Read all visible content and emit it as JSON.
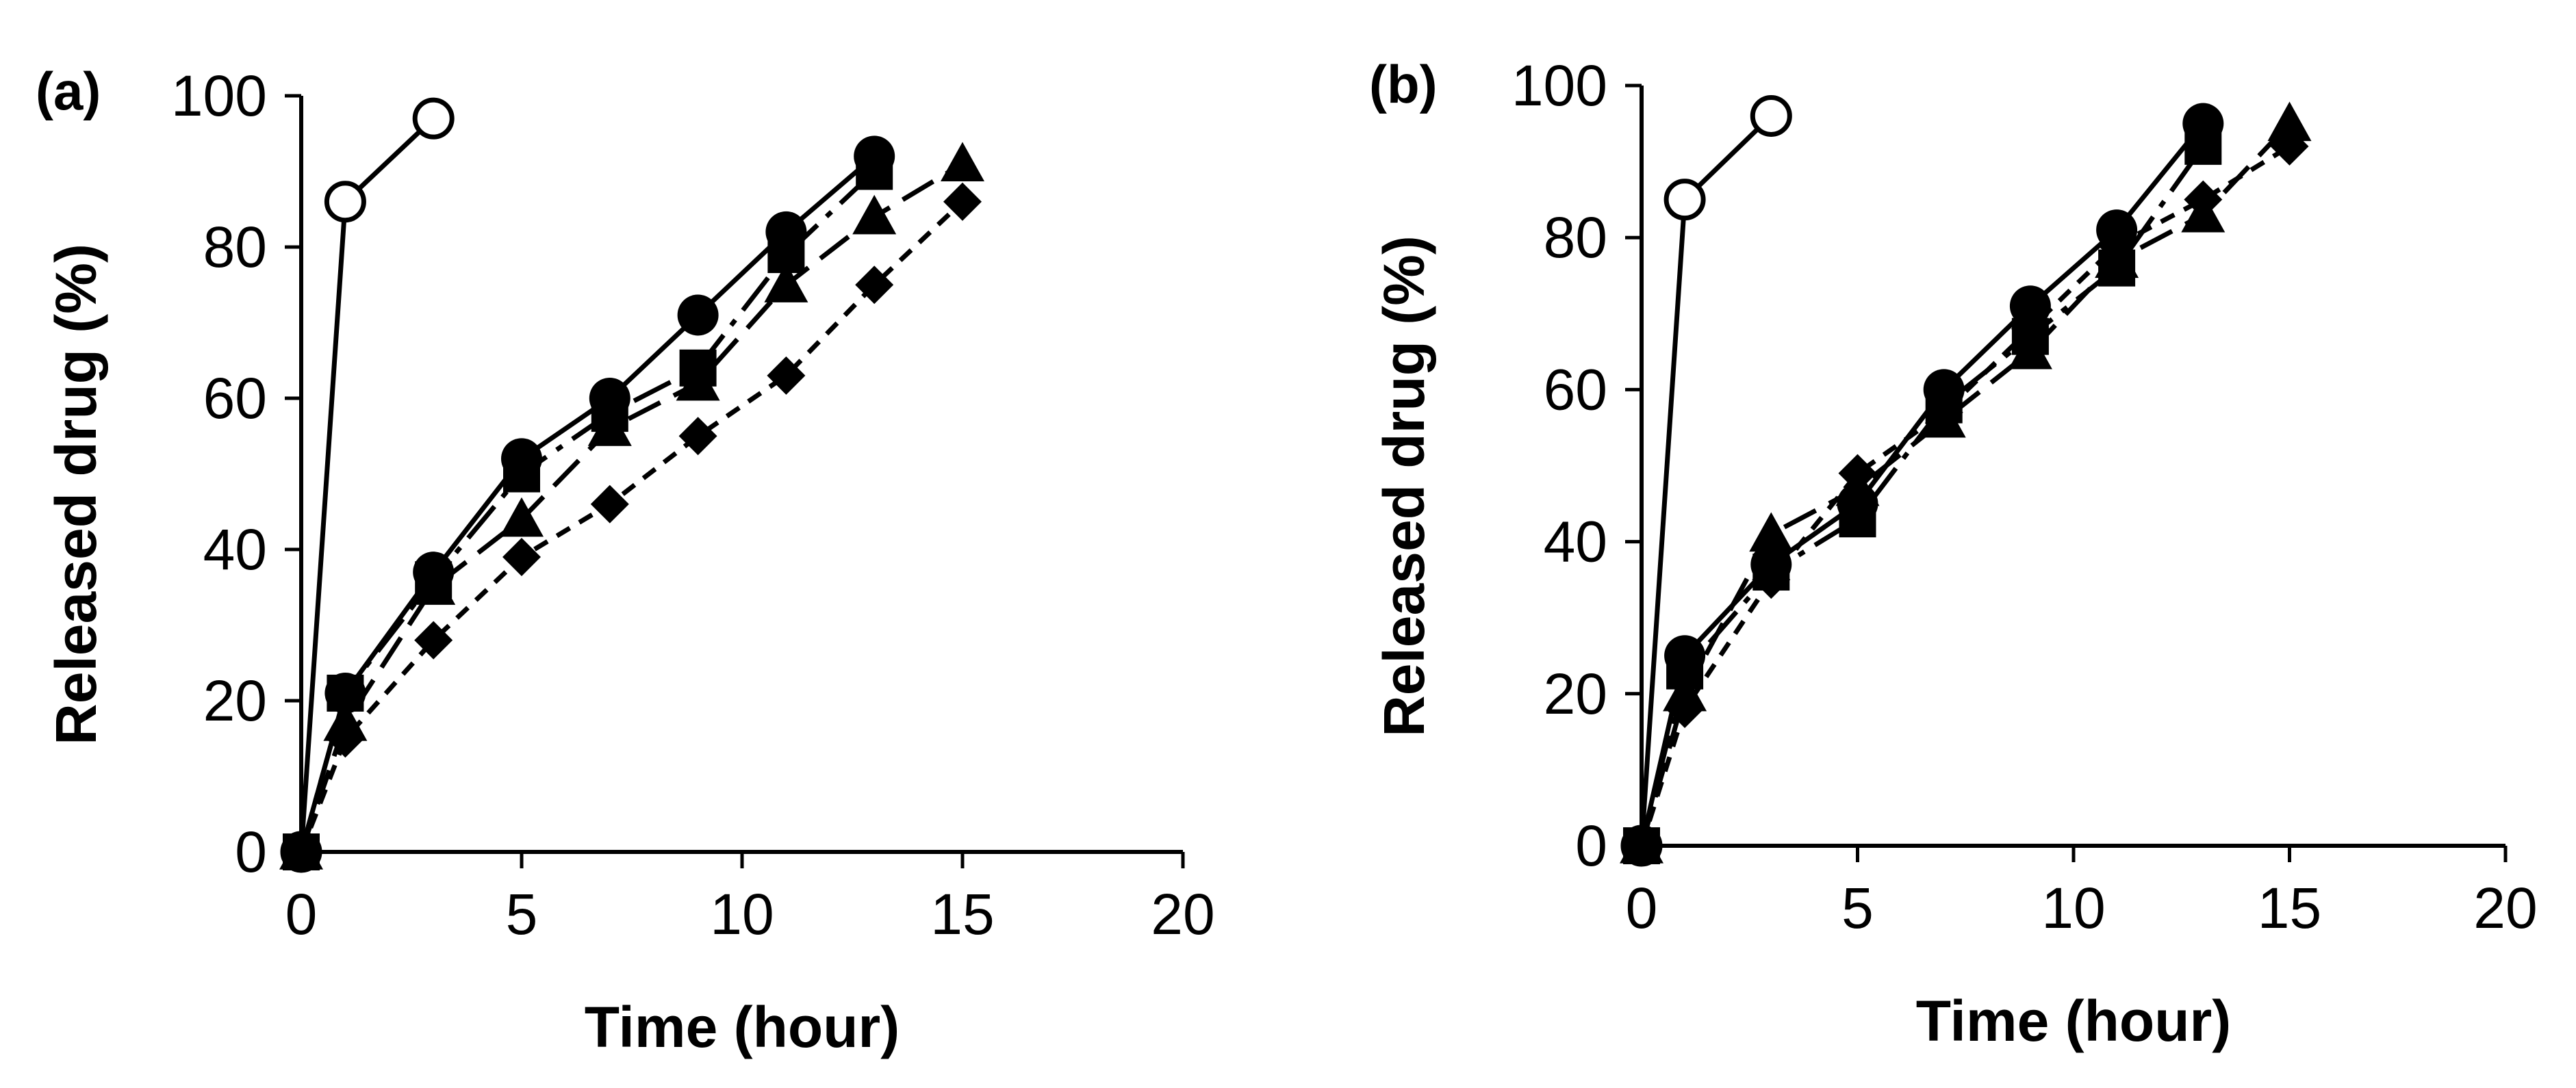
{
  "chart_data": [
    {
      "type": "line",
      "panel_label": "(a)",
      "xlabel": "Time (hour)",
      "ylabel": "Released drug (%)",
      "xlim": [
        0,
        20
      ],
      "ylim": [
        0,
        100
      ],
      "xticks": [
        0,
        5,
        10,
        15,
        20
      ],
      "yticks": [
        0,
        20,
        40,
        60,
        80,
        100
      ],
      "grid": false,
      "series": [
        {
          "name": "open-circle",
          "marker": "circle-open",
          "dash": "solid",
          "x": [
            0,
            1,
            3
          ],
          "y": [
            0,
            86,
            97
          ]
        },
        {
          "name": "filled-circle",
          "marker": "circle",
          "dash": "solid",
          "x": [
            0,
            1,
            3,
            5,
            7,
            9,
            11,
            13
          ],
          "y": [
            0,
            21,
            37,
            52,
            60,
            71,
            82,
            92
          ]
        },
        {
          "name": "filled-square",
          "marker": "square",
          "dash": "dashdot",
          "x": [
            0,
            1,
            3,
            5,
            7,
            9,
            11,
            13
          ],
          "y": [
            0,
            21,
            36,
            50,
            58,
            64,
            79,
            90
          ]
        },
        {
          "name": "filled-triangle",
          "marker": "triangle",
          "dash": "longdash",
          "x": [
            0,
            1,
            3,
            5,
            7,
            9,
            11,
            13,
            15
          ],
          "y": [
            0,
            17,
            35,
            44,
            56,
            62,
            75,
            84,
            91
          ]
        },
        {
          "name": "filled-diamond",
          "marker": "diamond",
          "dash": "shortdash",
          "x": [
            0,
            1,
            3,
            5,
            7,
            9,
            11,
            13,
            15
          ],
          "y": [
            0,
            15,
            28,
            39,
            46,
            55,
            63,
            75,
            86
          ]
        }
      ]
    },
    {
      "type": "line",
      "panel_label": "(b)",
      "xlabel": "Time (hour)",
      "ylabel": "Released drug (%)",
      "xlim": [
        0,
        20
      ],
      "ylim": [
        0,
        100
      ],
      "xticks": [
        0,
        5,
        10,
        15,
        20
      ],
      "yticks": [
        0,
        20,
        40,
        60,
        80,
        100
      ],
      "grid": false,
      "series": [
        {
          "name": "open-circle",
          "marker": "circle-open",
          "dash": "solid",
          "x": [
            0,
            1,
            3
          ],
          "y": [
            0,
            85,
            96
          ]
        },
        {
          "name": "filled-circle",
          "marker": "circle",
          "dash": "solid",
          "x": [
            0,
            1,
            3,
            5,
            7,
            9,
            11,
            13
          ],
          "y": [
            0,
            25,
            37,
            45,
            60,
            71,
            81,
            95
          ]
        },
        {
          "name": "filled-square",
          "marker": "square",
          "dash": "dashdot",
          "x": [
            0,
            1,
            3,
            5,
            7,
            9,
            11,
            13
          ],
          "y": [
            0,
            23,
            36,
            43,
            58,
            67,
            76,
            92
          ]
        },
        {
          "name": "filled-triangle",
          "marker": "triangle",
          "dash": "longdash",
          "x": [
            0,
            1,
            3,
            5,
            7,
            9,
            11,
            13,
            15
          ],
          "y": [
            0,
            20,
            41,
            47,
            56,
            65,
            77,
            83,
            95
          ]
        },
        {
          "name": "filled-diamond",
          "marker": "diamond",
          "dash": "shortdash",
          "x": [
            0,
            1,
            3,
            5,
            7,
            9,
            11,
            13,
            15
          ],
          "y": [
            0,
            18,
            35,
            49,
            57,
            68,
            79,
            85,
            92
          ]
        }
      ]
    }
  ]
}
